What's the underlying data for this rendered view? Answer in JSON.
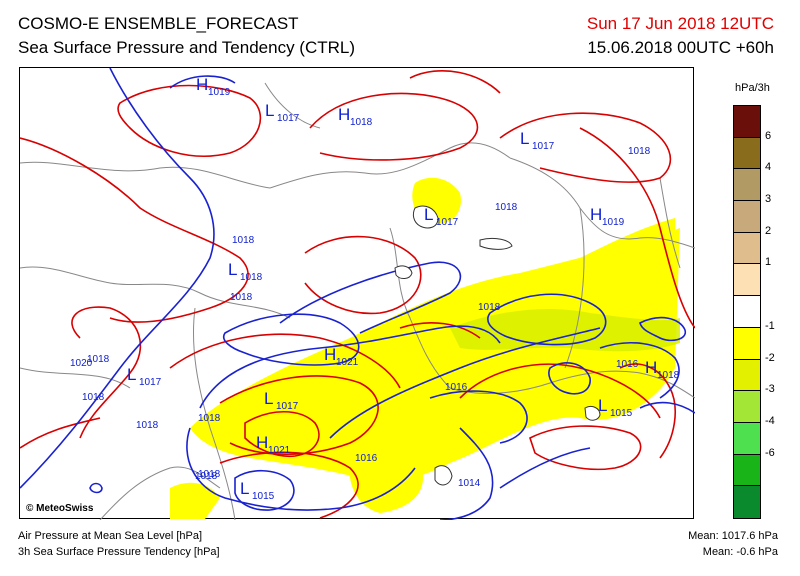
{
  "header": {
    "title": "COSMO-E ENSEMBLE_FORECAST",
    "subtitle": "Sea Surface Pressure and Tendency (CTRL)",
    "valid_time": "Sun 17 Jun 2018 12UTC",
    "run_time": "15.06.2018 00UTC +60h"
  },
  "colorbar": {
    "unit": "hPa/3h",
    "bins": [
      {
        "color": "#6b0f0b"
      },
      {
        "color": "#8a6d1c"
      },
      {
        "color": "#b19a63"
      },
      {
        "color": "#c8a97c"
      },
      {
        "color": "#e0bd8c"
      },
      {
        "color": "#fde0b4"
      },
      {
        "color": "#ffffff"
      },
      {
        "color": "#ffff00"
      },
      {
        "color": "#e3f000"
      },
      {
        "color": "#a3e635"
      },
      {
        "color": "#4ee04e"
      },
      {
        "color": "#18b418"
      },
      {
        "color": "#0a8a2c"
      }
    ],
    "ticks": [
      "6",
      "4",
      "3",
      "2",
      "1",
      "-1",
      "-2",
      "-3",
      "-4",
      "-6"
    ]
  },
  "map": {
    "copyright": "© MeteoSwiss",
    "pressure_labels": [
      {
        "text": "1018"
      },
      {
        "text": "1018"
      },
      {
        "text": "1018"
      },
      {
        "text": "1018"
      },
      {
        "text": "1018"
      },
      {
        "text": "1018"
      },
      {
        "text": "1018"
      },
      {
        "text": "1018"
      },
      {
        "text": "1018"
      },
      {
        "text": "1020"
      },
      {
        "text": "1016"
      },
      {
        "text": "1016"
      },
      {
        "text": "1016"
      },
      {
        "text": "1014"
      },
      {
        "text": "1018"
      },
      {
        "text": "1018"
      }
    ],
    "centers": [
      {
        "type": "H",
        "value": "1019"
      },
      {
        "type": "L",
        "value": "1017"
      },
      {
        "type": "H",
        "value": "1018"
      },
      {
        "type": "L",
        "value": "1017"
      },
      {
        "type": "H",
        "value": "1019"
      },
      {
        "type": "L",
        "value": "1017"
      },
      {
        "type": "L",
        "value": "1018"
      },
      {
        "type": "H",
        "value": "1021"
      },
      {
        "type": "L",
        "value": "1017"
      },
      {
        "type": "L",
        "value": "1017"
      },
      {
        "type": "H",
        "value": "1021"
      },
      {
        "type": "L",
        "value": "1015"
      },
      {
        "type": "H",
        "value": "1018"
      },
      {
        "type": "L",
        "value": "1015"
      }
    ]
  },
  "footer": {
    "line1": "Air Pressure at Mean Sea Level [hPa]",
    "line2": "3h Sea Surface Pressure Tendency [hPa]",
    "mean_pressure": "Mean: 1017.6 hPa",
    "mean_tendency": "Mean:  -0.6 hPa"
  }
}
